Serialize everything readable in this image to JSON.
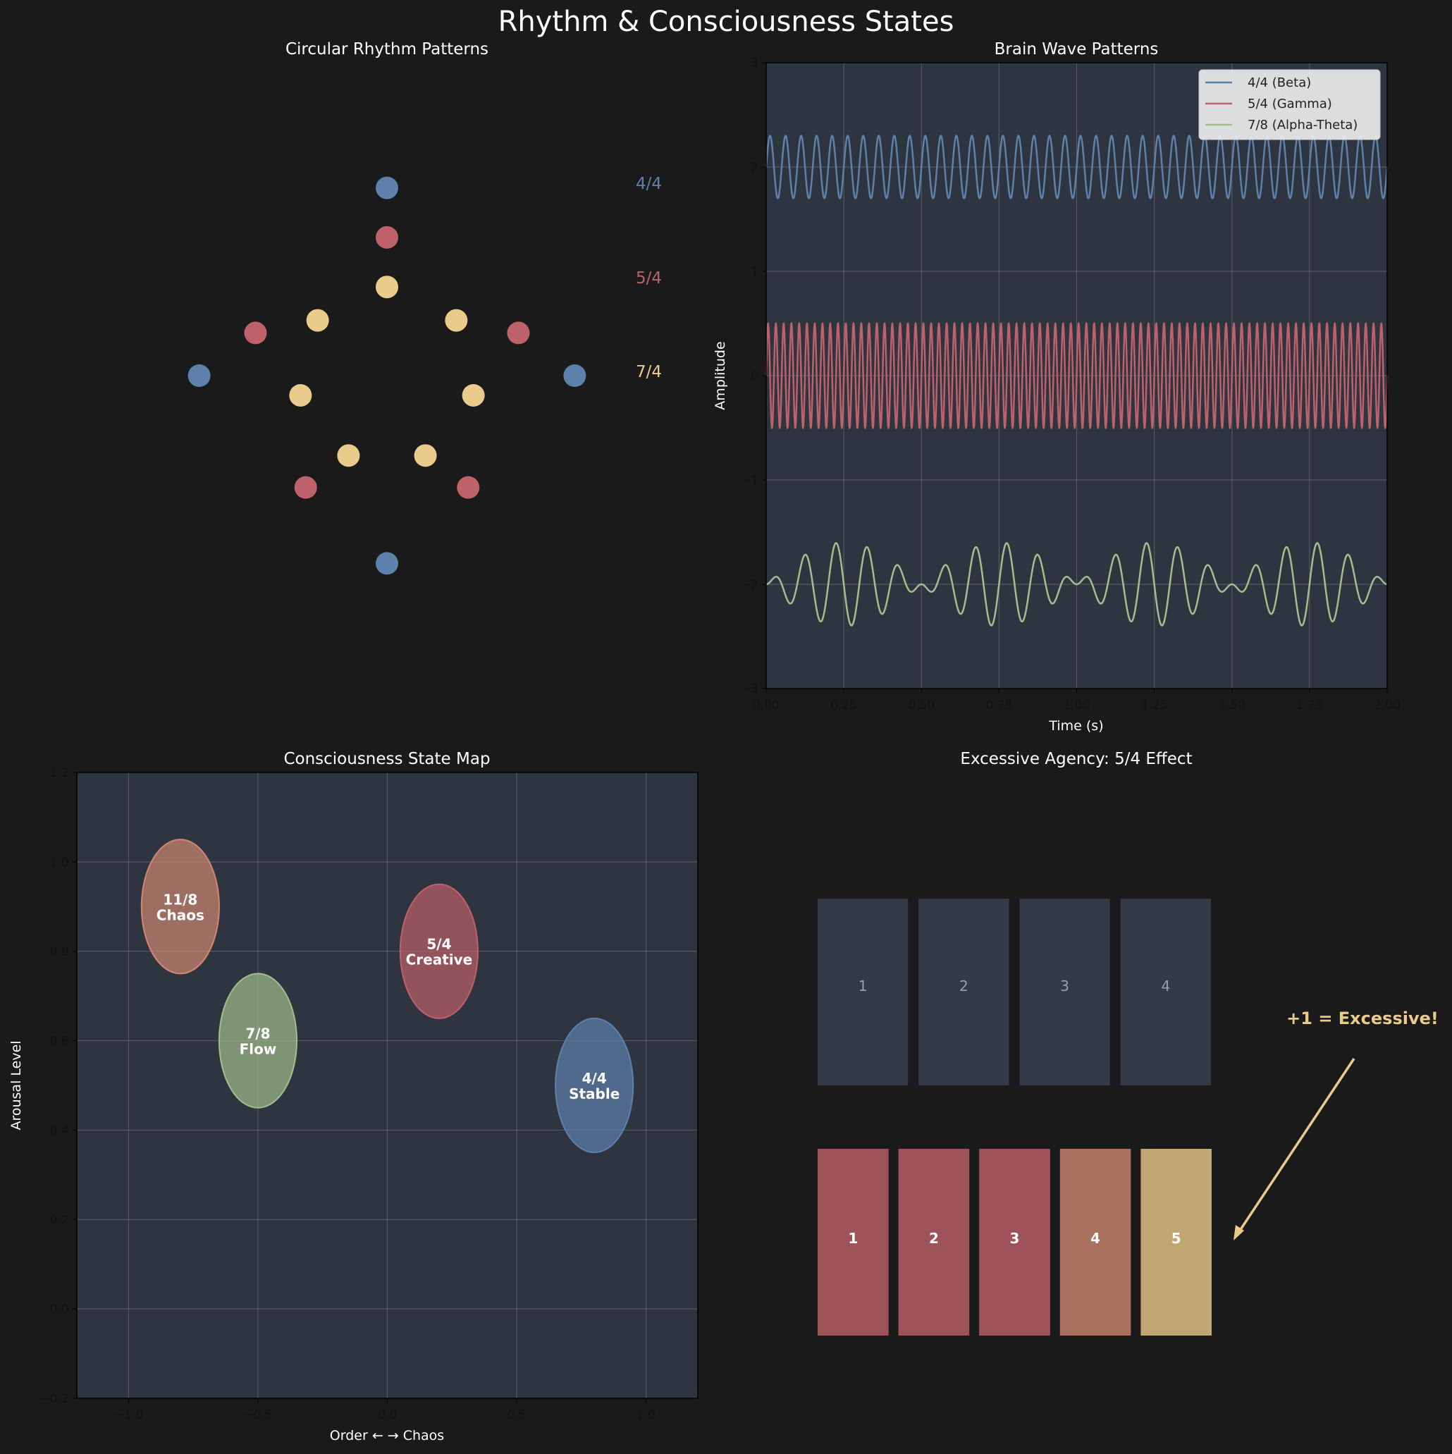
{
  "suptitle": "Rhythm & Consciousness States",
  "colors": {
    "bg": "#1a1a1a",
    "panel": "#2e3440",
    "blue": "#5e81ac",
    "red": "#bf616a",
    "yellow": "#ebcb8b",
    "green": "#a3be8c",
    "orange": "#d08770"
  },
  "chart_data": [
    {
      "type": "scatter",
      "title": "Circular Rhythm Patterns",
      "grid": false,
      "rings": [
        {
          "label": "4/4",
          "beats": 4,
          "radius": 0.72,
          "color": "#5e81ac"
        },
        {
          "label": "5/4",
          "beats": 5,
          "radius": 0.53,
          "color": "#bf616a"
        },
        {
          "label": "7/4",
          "beats": 7,
          "radius": 0.34,
          "color": "#ebcb8b"
        }
      ]
    },
    {
      "type": "line",
      "title": "Brain Wave Patterns",
      "xlabel": "Time (s)",
      "ylabel": "Amplitude",
      "xlim": [
        0,
        2
      ],
      "ylim": [
        -3,
        3
      ],
      "xticks": [
        "0.00",
        "0.25",
        "0.50",
        "0.75",
        "1.00",
        "1.25",
        "1.50",
        "1.75",
        "2.00"
      ],
      "yticks": [
        "−3",
        "−2",
        "−1",
        "0",
        "1",
        "2",
        "3"
      ],
      "legend": "top-right",
      "series": [
        {
          "name": "4/4 (Beta)",
          "color": "#5e81ac",
          "offset": 2,
          "amplitude": 0.3,
          "frequency_hz": 20,
          "modulation_hz": 0
        },
        {
          "name": "5/4 (Gamma)",
          "color": "#bf616a",
          "offset": 0,
          "amplitude": 0.5,
          "frequency_hz": 40,
          "modulation_hz": 0
        },
        {
          "name": "7/8 (Alpha-Theta)",
          "color": "#a3be8c",
          "offset": -2,
          "amplitude": 0.4,
          "frequency_hz": 10,
          "modulation_hz": 1
        }
      ]
    },
    {
      "type": "scatter",
      "title": "Consciousness State Map",
      "xlabel": "Order ← → Chaos",
      "ylabel": "Arousal Level",
      "xlim": [
        -1.2,
        1.2
      ],
      "ylim": [
        -0.2,
        1.2
      ],
      "xticks": [
        "−1.0",
        "−0.5",
        "0.0",
        "0.5",
        "1.0"
      ],
      "yticks": [
        "−0.2",
        "0.0",
        "0.2",
        "0.4",
        "0.6",
        "0.8",
        "1.0",
        "1.2"
      ],
      "grid": true,
      "states": [
        {
          "name": "4/4",
          "desc": "Stable",
          "x": 0.8,
          "y": 0.5,
          "width": 0.3,
          "height": 0.3,
          "color": "#5e81ac"
        },
        {
          "name": "5/4",
          "desc": "Creative",
          "x": 0.2,
          "y": 0.8,
          "width": 0.3,
          "height": 0.3,
          "color": "#bf616a"
        },
        {
          "name": "7/8",
          "desc": "Flow",
          "x": -0.5,
          "y": 0.6,
          "width": 0.3,
          "height": 0.3,
          "color": "#a3be8c"
        },
        {
          "name": "11/8",
          "desc": "Chaos",
          "x": -0.8,
          "y": 0.9,
          "width": 0.3,
          "height": 0.3,
          "color": "#d08770"
        }
      ]
    },
    {
      "type": "bar",
      "title": "Excessive Agency: 5/4 Effect",
      "grid": false,
      "row_4_4": {
        "labels": [
          "1",
          "2",
          "3",
          "4"
        ],
        "color": "#3b4252"
      },
      "row_5_4": {
        "labels": [
          "1",
          "2",
          "3",
          "4",
          "5"
        ],
        "colors": [
          "#bf616a",
          "#bf616a",
          "#bf616a",
          "#d08770",
          "#ebcb8b"
        ]
      },
      "annotation": "+1 = Excessive!"
    }
  ]
}
